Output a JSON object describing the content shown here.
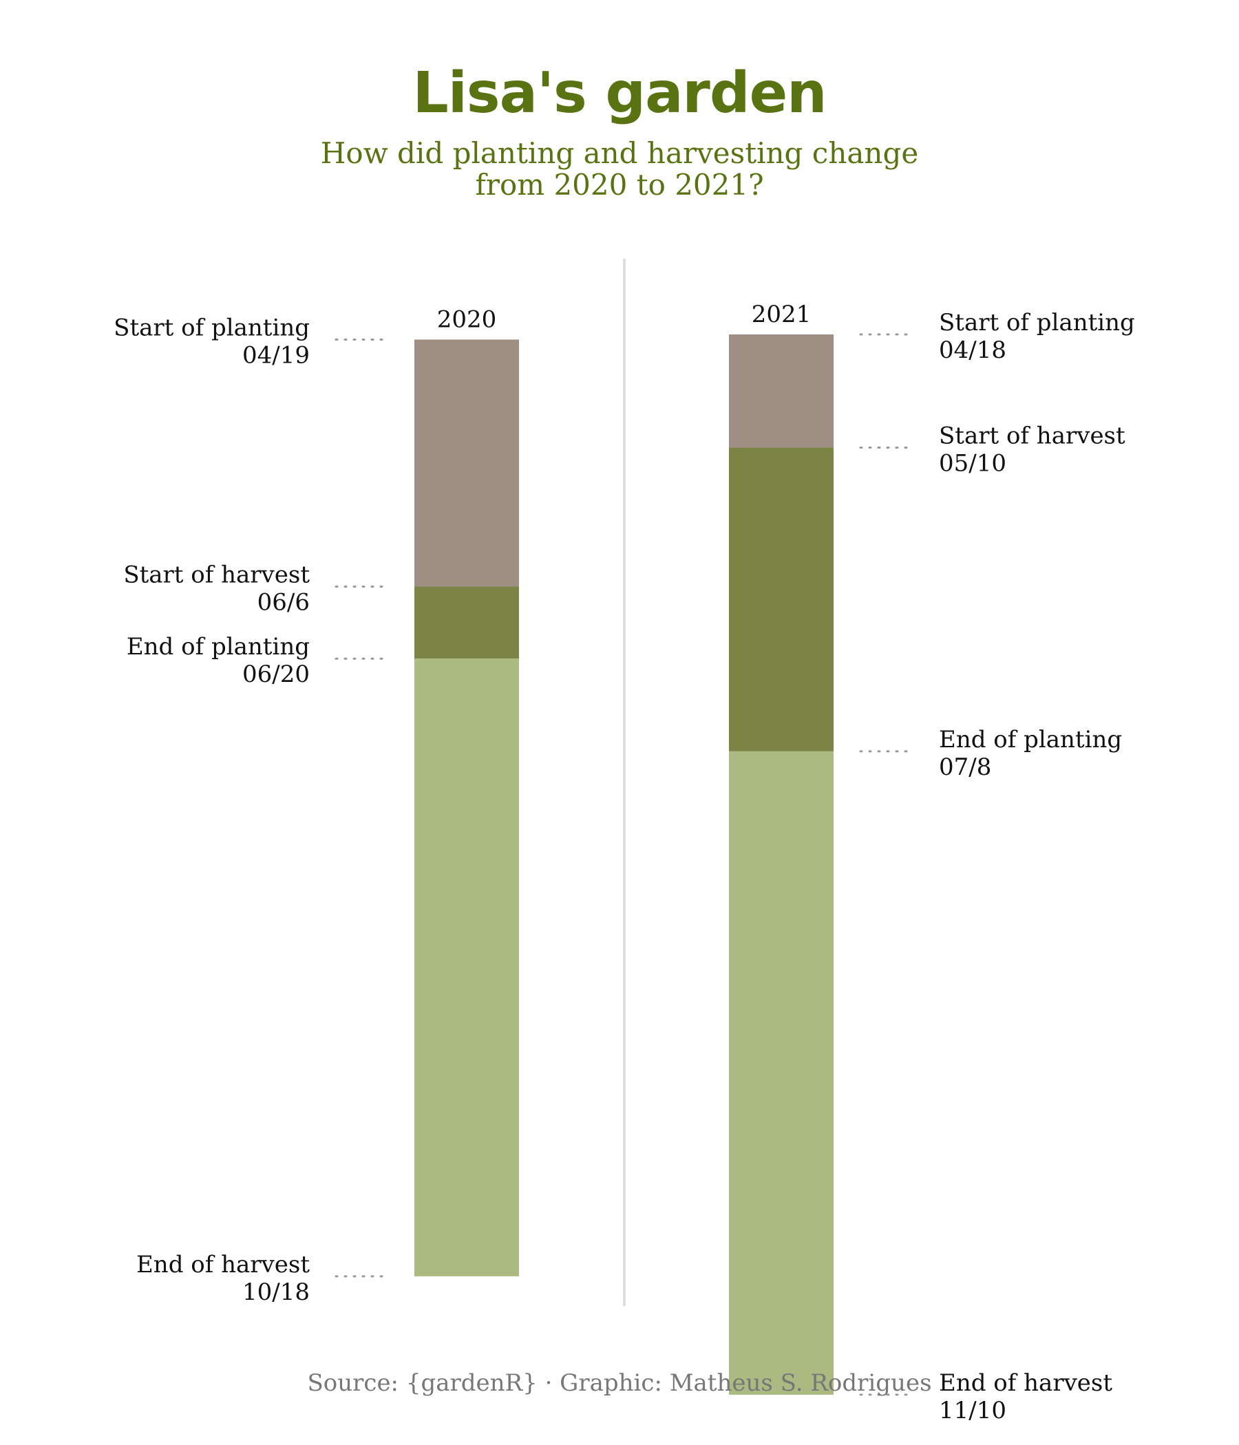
{
  "title": "Lisa's garden",
  "subtitle_line1": "How did planting and harvesting change",
  "subtitle_line2": "from 2020 to 2021?",
  "source": "Source: {gardenR} · Graphic: Matheus S. Rodrigues",
  "colors": {
    "title": "#5a7312",
    "planting_only": "#9e8e84",
    "planting_and_harvest": "#7b8445",
    "harvest_only": "#abba80",
    "divider": "#dddddd",
    "dots": "#999999"
  },
  "chart_data": {
    "type": "bar",
    "bars": [
      {
        "year": "2020",
        "label_side": "left",
        "events": [
          {
            "name": "Start of planting",
            "date": "04/19"
          },
          {
            "name": "Start of harvest",
            "date": "06/6"
          },
          {
            "name": "End of planting",
            "date": "06/20"
          },
          {
            "name": "End of harvest",
            "date": "10/18"
          }
        ]
      },
      {
        "year": "2021",
        "label_side": "right",
        "events": [
          {
            "name": "Start of planting",
            "date": "04/18"
          },
          {
            "name": "Start of harvest",
            "date": "05/10"
          },
          {
            "name": "End of planting",
            "date": "07/8"
          },
          {
            "name": "End of harvest",
            "date": "11/10"
          }
        ]
      }
    ]
  }
}
